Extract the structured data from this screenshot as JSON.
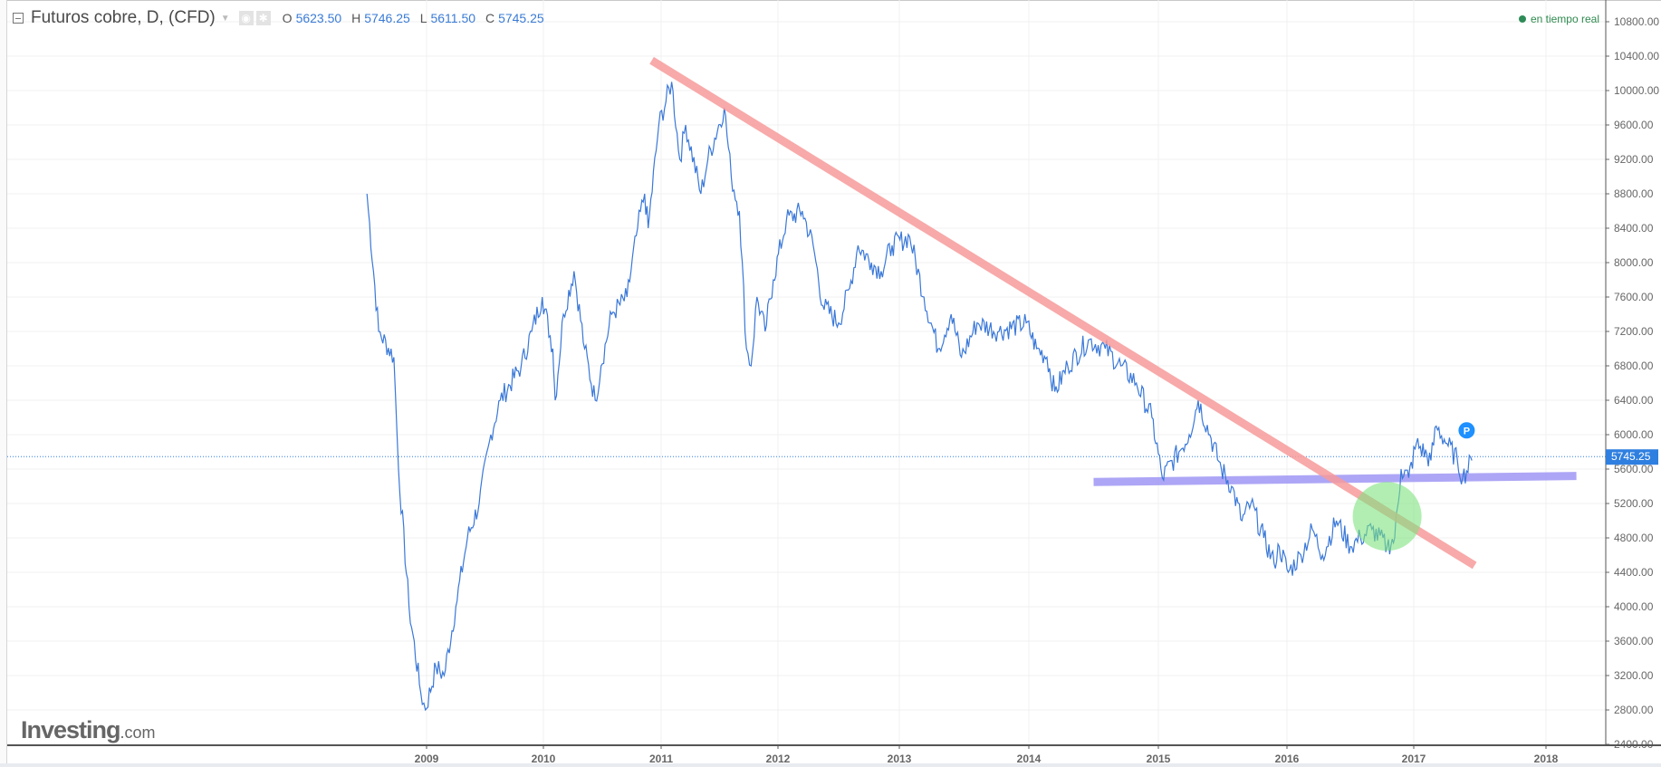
{
  "header": {
    "title": "Futuros cobre, D, (CFD)",
    "ohlc": [
      {
        "label": "O",
        "value": "5623.50"
      },
      {
        "label": "H",
        "value": "5746.25"
      },
      {
        "label": "L",
        "value": "5611.50"
      },
      {
        "label": "C",
        "value": "5745.25"
      }
    ],
    "realtime": "en tiempo real"
  },
  "logo": {
    "main": "Investing",
    "suffix": ".com"
  },
  "colors": {
    "line": "#3a78d8",
    "trend": "#f79a9a",
    "support": "#9f97f5",
    "highlight": "#7fe27f",
    "grid": "#f0f0f0",
    "price_label": "#2f7fe0"
  },
  "chart_data": {
    "type": "line",
    "title": "Futuros cobre, D, (CFD)",
    "xlabel": "",
    "ylabel": "",
    "ylim": [
      2400,
      10800
    ],
    "grid": true,
    "x_ticks": [
      "2009",
      "2010",
      "2011",
      "2012",
      "2013",
      "2014",
      "2015",
      "2016",
      "2017",
      "2018"
    ],
    "y_ticks": [
      "10800.00",
      "10400.00",
      "10000.00",
      "9600.00",
      "9200.00",
      "8800.00",
      "8400.00",
      "8000.00",
      "7600.00",
      "7200.00",
      "6800.00",
      "6400.00",
      "6000.00",
      "5600.00",
      "5200.00",
      "4800.00",
      "4400.00",
      "4000.00",
      "3600.00",
      "3200.00",
      "2800.00",
      "2400.00"
    ],
    "series": [
      {
        "name": "Futuros cobre",
        "x": [
          2008.49,
          2008.59,
          2008.72,
          2008.76,
          2008.85,
          2008.95,
          2008.99,
          2009.08,
          2009.15,
          2009.25,
          2009.35,
          2009.45,
          2009.55,
          2009.63,
          2009.81,
          2009.9,
          2009.99,
          2010.08,
          2010.1,
          2010.17,
          2010.26,
          2010.35,
          2010.44,
          2010.49,
          2010.58,
          2010.71,
          2010.8,
          2010.86,
          2010.89,
          2010.98,
          2011.09,
          2011.16,
          2011.21,
          2011.34,
          2011.4,
          2011.54,
          2011.6,
          2011.67,
          2011.73,
          2011.77,
          2011.82,
          2011.89,
          2011.96,
          2012.07,
          2012.2,
          2012.29,
          2012.37,
          2012.5,
          2012.59,
          2012.66,
          2012.77,
          2012.85,
          2012.94,
          2013.08,
          2013.19,
          2013.3,
          2013.4,
          2013.48,
          2013.6,
          2013.77,
          2013.98,
          2014.06,
          2014.14,
          2014.2,
          2014.3,
          2014.46,
          2014.59,
          2014.71,
          2014.83,
          2014.95,
          2015.03,
          2015.16,
          2015.24,
          2015.31,
          2015.4,
          2015.49,
          2015.57,
          2015.65,
          2015.72,
          2015.82,
          2015.9,
          2015.94,
          2016.01,
          2016.11,
          2016.2,
          2016.28,
          2016.39,
          2016.5,
          2016.58,
          2016.67,
          2016.79,
          2016.85,
          2016.9,
          2016.96,
          2017.02,
          2017.13,
          2017.17,
          2017.25,
          2017.33,
          2017.37,
          2017.44
        ],
        "y": [
          8800,
          7200,
          6900,
          5600,
          4000,
          3000,
          2800,
          3300,
          3200,
          4000,
          4800,
          5200,
          6000,
          6400,
          6800,
          7200,
          7600,
          7000,
          6400,
          7400,
          7900,
          7000,
          6400,
          6800,
          7400,
          7600,
          8400,
          8800,
          8400,
          9600,
          10100,
          9200,
          9600,
          8800,
          9200,
          9800,
          9000,
          8600,
          7000,
          6800,
          7600,
          7200,
          7800,
          8500,
          8600,
          8200,
          7500,
          7300,
          7700,
          8200,
          8000,
          7900,
          8200,
          8300,
          7600,
          7000,
          7400,
          6900,
          7300,
          7200,
          7300,
          7000,
          6900,
          6500,
          6800,
          7100,
          7000,
          6800,
          6600,
          6200,
          5500,
          5800,
          6000,
          6400,
          6000,
          5600,
          5400,
          5000,
          5200,
          4800,
          4500,
          4700,
          4400,
          4600,
          4900,
          4600,
          5000,
          4700,
          4800,
          4900,
          4700,
          4800,
          5600,
          5500,
          5900,
          5700,
          6100,
          5900,
          5700,
          5500,
          5700
        ]
      }
    ],
    "last_price": {
      "value": 5745.25,
      "label": "5745.25"
    },
    "annotations": {
      "trendline": {
        "x": [
          2010.92,
          2017.46
        ],
        "y": [
          10350,
          4480
        ]
      },
      "support_line": {
        "x": [
          2014.5,
          2018.23
        ],
        "y": [
          5450,
          5520
        ]
      },
      "highlight_circle": {
        "x": 2016.79,
        "y": 5050
      },
      "marker": {
        "x": 2017.4,
        "y": 6050,
        "label": "P"
      }
    }
  }
}
